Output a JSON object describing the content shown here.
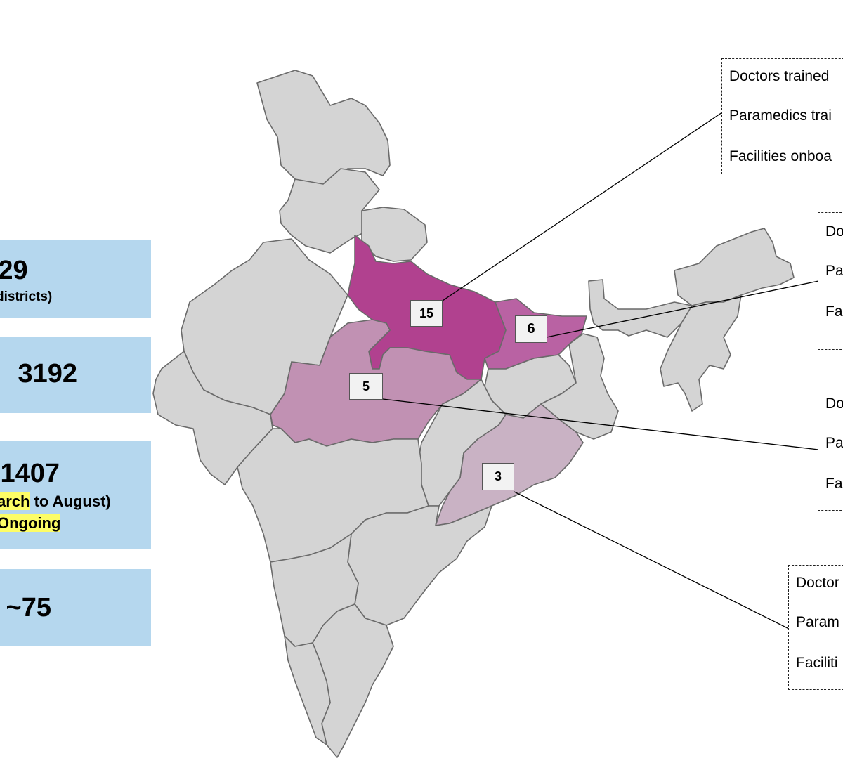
{
  "stats": [
    {
      "value": "29",
      "sub": "districts)"
    },
    {
      "value": "3192"
    },
    {
      "value": "1407",
      "sub_parts": [
        "arch",
        " to August)"
      ],
      "sub2": "Ongoing"
    },
    {
      "value": "~75"
    }
  ],
  "regions": [
    {
      "count": "15",
      "fill": "#b1418f",
      "info": [
        "Doctors trained",
        "Paramedics trai",
        "Facilities onboa"
      ]
    },
    {
      "count": "6",
      "fill": "#b962a3",
      "info": [
        "Do",
        "Pa",
        "Fa"
      ]
    },
    {
      "count": "5",
      "fill": "#c191b3",
      "info": [
        "Do",
        "Pa",
        "Fa"
      ]
    },
    {
      "count": "3",
      "fill": "#c9b2c4",
      "info": [
        "Doctor",
        "Param",
        "Faciliti"
      ]
    }
  ],
  "colors": {
    "card_bg": "#b5d7ee",
    "highlight": "#fdfd66",
    "map_base": "#d4d4d4"
  }
}
